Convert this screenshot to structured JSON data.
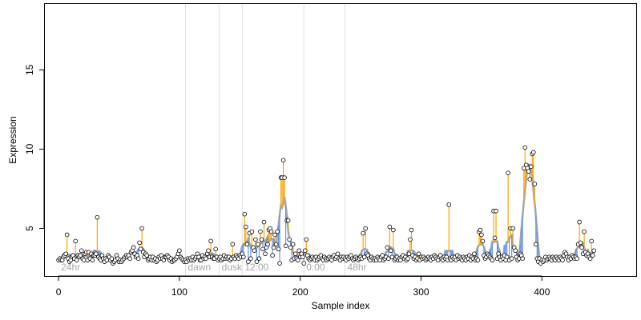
{
  "chart_data": {
    "type": "scatter",
    "xlabel": "Sample index",
    "ylabel": "Expression",
    "xlim": [
      -12,
      478
    ],
    "ylim": [
      2.0,
      19.2
    ],
    "x_ticks": [
      0,
      100,
      200,
      300,
      400
    ],
    "y_ticks": [
      5,
      10,
      15
    ],
    "grid": false,
    "colors": {
      "above_trend": "#ffa500",
      "below_trend": "#6495ed",
      "trend": "#a6a6a6",
      "section_line": "#e0e0e0",
      "section_text": "#a6a6a6",
      "point_edge": "#000000"
    },
    "sections": [
      {
        "label": "24hr",
        "boundary": 0
      },
      {
        "label": "dawn",
        "boundary": 105
      },
      {
        "label": "dusk",
        "boundary": 133
      },
      {
        "label": "12:00",
        "boundary": 152
      },
      {
        "label": "0:00",
        "boundary": 203
      },
      {
        "label": "48hr",
        "boundary": 237
      }
    ],
    "series": [
      {
        "values": [
          3.0,
          3.1,
          3.0,
          3.0,
          3.2,
          3.3,
          3.4,
          4.6,
          3.1,
          2.9,
          3.0,
          3.2,
          3.3,
          3.1,
          4.2,
          3.0,
          3.3,
          3.2,
          3.3,
          3.6,
          3.1,
          3.0,
          3.4,
          3.5,
          3.0,
          3.5,
          3.1,
          3.4,
          3.0,
          3.3,
          3.3,
          3.4,
          5.7,
          3.2,
          3.1,
          3.0,
          3.3,
          3.1,
          2.9,
          3.1,
          3.0,
          3.3,
          3.2,
          3.0,
          3.1,
          2.8,
          2.9,
          3.0,
          3.3,
          3.1,
          2.9,
          3.0,
          2.9,
          3.0,
          3.1,
          3.2,
          3.3,
          3.2,
          3.3,
          3.1,
          3.5,
          3.6,
          3.8,
          3.4,
          3.2,
          3.3,
          3.1,
          4.1,
          3.7,
          5.0,
          3.5,
          3.2,
          3.4,
          3.3,
          3.0,
          3.1,
          3.2,
          3.0,
          3.2,
          3.0,
          3.1,
          2.9,
          3.0,
          3.2,
          3.1,
          3.3,
          3.1,
          3.0,
          3.2,
          3.2,
          3.3,
          3.2,
          3.0,
          3.1,
          2.9,
          3.0,
          3.0,
          3.1,
          3.2,
          3.4,
          3.6,
          3.2,
          3.1,
          3.0,
          2.9,
          3.0,
          2.9,
          3.1,
          3.0,
          3.1,
          3.0,
          3.2,
          3.0,
          3.1,
          3.2,
          3.4,
          3.2,
          3.0,
          3.0,
          3.3,
          3.1,
          3.2,
          3.1,
          3.4,
          3.6,
          3.2,
          4.2,
          3.2,
          3.1,
          3.1,
          3.7,
          3.2,
          3.0,
          3.1,
          3.2,
          3.0,
          3.1,
          3.3,
          3.1,
          3.2,
          3.1,
          3.2,
          3.0,
          3.1,
          4.0,
          3.2,
          3.1,
          3.3,
          3.2,
          3.1,
          3.3,
          3.2,
          3.4,
          3.2,
          5.9,
          5.1,
          4.0,
          2.9,
          4.7,
          3.1,
          4.8,
          3.8,
          3.6,
          4.3,
          2.9,
          4.0,
          3.1,
          4.8,
          4.3,
          3.7,
          5.4,
          3.4,
          3.8,
          4.0,
          4.9,
          5.0,
          4.8,
          3.3,
          3.8,
          4.6,
          4.0,
          4.8,
          3.7,
          2.8,
          8.2,
          8.2,
          9.3,
          8.2,
          3.9,
          5.5,
          5.5,
          4.3,
          3.8,
          3.0,
          4.0,
          3.1,
          3.4,
          3.1,
          3.0,
          3.6,
          3.2,
          3.4,
          3.2,
          2.8,
          3.6,
          4.3,
          3.3,
          3.1,
          3.0,
          3.1,
          3.2,
          3.1,
          3.0,
          3.2,
          3.0,
          3.1,
          3.2,
          3.3,
          3.1,
          3.0,
          3.2,
          3.1,
          3.0,
          3.1,
          3.2,
          3.1,
          3.0,
          3.2,
          3.3,
          3.1,
          3.2,
          3.4,
          3.1,
          3.0,
          3.2,
          3.1,
          3.2,
          3.1,
          3.0,
          3.2,
          3.1,
          3.2,
          3.3,
          3.1,
          3.0,
          3.1,
          3.2,
          3.1,
          3.0,
          3.1,
          3.2,
          3.1,
          4.7,
          3.2,
          5.0,
          3.4,
          3.3,
          3.1,
          3.0,
          3.2,
          3.1,
          3.0,
          3.1,
          3.0,
          3.2,
          3.1,
          3.0,
          3.2,
          3.3,
          3.0,
          3.1,
          3.2,
          3.8,
          3.1,
          5.1,
          3.6,
          3.2,
          4.9,
          3.0,
          3.1,
          3.2,
          3.0,
          3.1,
          3.0,
          3.2,
          3.3,
          3.1,
          3.2,
          3.0,
          3.1,
          3.4,
          4.3,
          4.9,
          3.3,
          3.1,
          3.2,
          3.0,
          3.1,
          3.4,
          3.0,
          3.2,
          3.1,
          3.2,
          3.1,
          3.0,
          3.1,
          3.2,
          3.1,
          3.0,
          3.2,
          3.1,
          3.3,
          3.2,
          3.1,
          3.0,
          3.2,
          3.3,
          3.1,
          3.0,
          3.2,
          3.1,
          3.2,
          3.0,
          6.5,
          3.1,
          3.0,
          3.2,
          3.1,
          3.2,
          3.0,
          3.3,
          3.1,
          3.2,
          3.1,
          3.0,
          3.2,
          3.1,
          3.0,
          3.2,
          3.1,
          3.3,
          3.0,
          3.2,
          3.1,
          3.4,
          3.0,
          3.1,
          3.0,
          4.8,
          4.9,
          4.6,
          4.2,
          3.3,
          3.1,
          3.2,
          3.4,
          3.3,
          3.2,
          3.1,
          3.0,
          6.1,
          4.4,
          6.1,
          3.1,
          3.4,
          3.2,
          3.0,
          3.2,
          3.1,
          3.3,
          3.0,
          3.2,
          8.5,
          3.0,
          5.0,
          3.1,
          5.0,
          3.8,
          3.6,
          3.2,
          3.0,
          3.1,
          3.4,
          3.3,
          3.1,
          8.8,
          10.1,
          9.0,
          8.8,
          8.6,
          8.1,
          8.9,
          9.7,
          9.8,
          7.8,
          4.0,
          3.1,
          2.9,
          3.1,
          2.8,
          3.0,
          2.9,
          3.0,
          3.2,
          3.0,
          3.1,
          3.2,
          3.1,
          3.0,
          3.2,
          3.1,
          3.0,
          3.2,
          3.1,
          3.0,
          3.2,
          3.1,
          3.0,
          3.3,
          3.5,
          3.4,
          3.2,
          3.0,
          3.2,
          3.1,
          3.3,
          3.2,
          3.1,
          3.2,
          3.1,
          4.0,
          5.4,
          4.1,
          3.8,
          3.4,
          4.8,
          3.5,
          3.3,
          3.4,
          3.2,
          3.1,
          4.2,
          3.3,
          3.6
        ]
      }
    ]
  }
}
